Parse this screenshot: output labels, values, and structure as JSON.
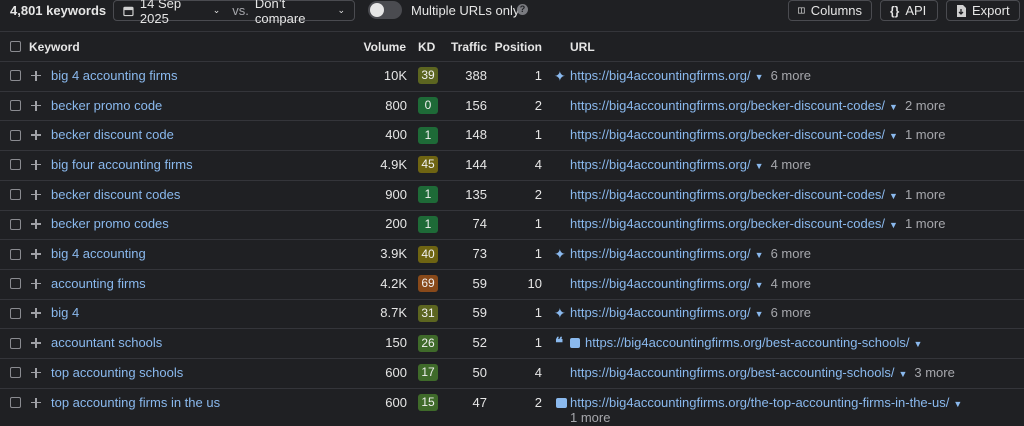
{
  "toolbar": {
    "count": "4,801 keywords",
    "date": "14 Sep 2025",
    "vs": "vs.",
    "compare": "Don’t compare",
    "multiple_urls": "Multiple URLs only",
    "columns": "Columns",
    "api": "API",
    "export": "Export"
  },
  "table": {
    "headers": [
      "Keyword",
      "Volume",
      "KD",
      "Traffic",
      "Position",
      "URL"
    ],
    "rows": [
      {
        "keyword": "big 4 accounting firms",
        "volume": "10K",
        "kd": 39,
        "traffic": 388,
        "position": 1,
        "url": "https://big4accountingfirms.org/",
        "more": "6 more"
      },
      {
        "keyword": "becker promo code",
        "volume": "800",
        "kd": 0,
        "traffic": 156,
        "position": 2,
        "url": "https://big4accountingfirms.org/becker-discount-codes/",
        "more": "2 more"
      },
      {
        "keyword": "becker discount code",
        "volume": "400",
        "kd": 1,
        "traffic": 148,
        "position": 1,
        "url": "https://big4accountingfirms.org/becker-discount-codes/",
        "more": "1 more"
      },
      {
        "keyword": "big four accounting firms",
        "volume": "4.9K",
        "kd": 45,
        "traffic": 144,
        "position": 4,
        "url": "https://big4accountingfirms.org/",
        "more": "4 more"
      },
      {
        "keyword": "becker discount codes",
        "volume": "900",
        "kd": 1,
        "traffic": 135,
        "position": 2,
        "url": "https://big4accountingfirms.org/becker-discount-codes/",
        "more": "1 more"
      },
      {
        "keyword": "becker promo codes",
        "volume": "200",
        "kd": 1,
        "traffic": 74,
        "position": 1,
        "url": "https://big4accountingfirms.org/becker-discount-codes/",
        "more": "1 more"
      },
      {
        "keyword": "big 4 accounting",
        "volume": "3.9K",
        "kd": 40,
        "traffic": 73,
        "position": 1,
        "url": "https://big4accountingfirms.org/",
        "more": "6 more"
      },
      {
        "keyword": "accounting firms",
        "volume": "4.2K",
        "kd": 69,
        "traffic": 59,
        "position": 10,
        "url": "https://big4accountingfirms.org/",
        "more": "4 more"
      },
      {
        "keyword": "big 4",
        "volume": "8.7K",
        "kd": 31,
        "traffic": 59,
        "position": 1,
        "url": "https://big4accountingfirms.org/",
        "more": "6 more"
      },
      {
        "keyword": "accountant schools",
        "volume": "150",
        "kd": 26,
        "traffic": 52,
        "position": 1,
        "url": "https://big4accountingfirms.org/best-accounting-schools/"
      },
      {
        "keyword": "top accounting schools",
        "volume": "600",
        "kd": 17,
        "traffic": 50,
        "position": 4,
        "url": "https://big4accountingfirms.org/best-accounting-schools/",
        "more": "3 more"
      },
      {
        "keyword": "top accounting firms in the us",
        "volume": "600",
        "kd": 15,
        "traffic": 47,
        "position": 2,
        "url": "https://big4accountingfirms.org/the-top-accounting-firms-in-the-us/",
        "more": "1 more"
      }
    ]
  }
}
